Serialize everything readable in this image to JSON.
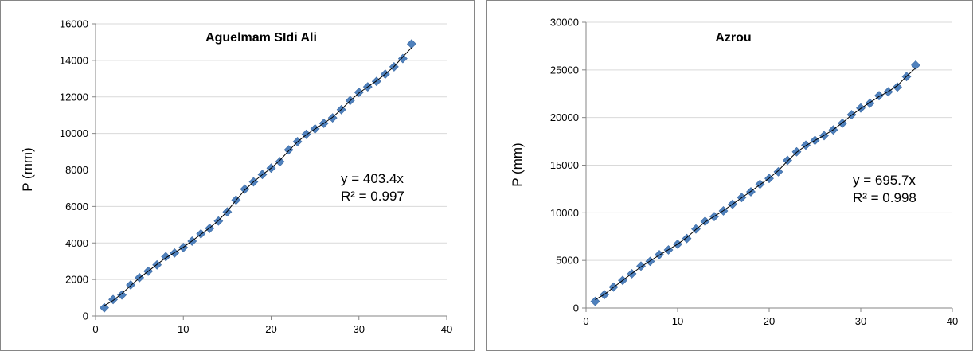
{
  "chart_data": [
    {
      "type": "scatter",
      "title": "Aguelmam SIdi Ali",
      "xlabel": "",
      "ylabel": "P (mm)",
      "xlim": [
        0,
        40
      ],
      "ylim": [
        0,
        16000
      ],
      "xticks": [
        "0",
        "10",
        "20",
        "30",
        "40"
      ],
      "yticks": [
        "0",
        "2000",
        "4000",
        "6000",
        "8000",
        "10000",
        "12000",
        "14000",
        "16000"
      ],
      "grid": "horizontal",
      "marker_color": "#4F81BD",
      "trendline_color": "#000000",
      "trendline": {
        "equation": "y = 403.4x",
        "r2": "R² = 0.997"
      },
      "series": [
        {
          "x": [
            1,
            2,
            3,
            4,
            5,
            6,
            7,
            8,
            9,
            10,
            11,
            12,
            13,
            14,
            15,
            16,
            17,
            18,
            19,
            20,
            21,
            22,
            23,
            24,
            25,
            26,
            27,
            28,
            29,
            30,
            31,
            32,
            33,
            34,
            35,
            36
          ],
          "y": [
            450,
            900,
            1150,
            1700,
            2100,
            2450,
            2800,
            3250,
            3450,
            3750,
            4100,
            4500,
            4800,
            5200,
            5700,
            6350,
            6950,
            7350,
            7750,
            8100,
            8450,
            9100,
            9550,
            9950,
            10250,
            10550,
            10850,
            11300,
            11800,
            12250,
            12550,
            12850,
            13250,
            13650,
            14100,
            14900
          ]
        }
      ]
    },
    {
      "type": "scatter",
      "title": "Azrou",
      "xlabel": "",
      "ylabel": "P (mm)",
      "xlim": [
        0,
        40
      ],
      "ylim": [
        0,
        30000
      ],
      "xticks": [
        "0",
        "10",
        "20",
        "30",
        "40"
      ],
      "yticks": [
        "0",
        "5000",
        "10000",
        "15000",
        "20000",
        "25000",
        "30000"
      ],
      "grid": "horizontal",
      "marker_color": "#4F81BD",
      "trendline_color": "#000000",
      "trendline": {
        "equation": "y = 695.7x",
        "r2": "R² = 0.998"
      },
      "series": [
        {
          "x": [
            1,
            2,
            3,
            4,
            5,
            6,
            7,
            8,
            9,
            10,
            11,
            12,
            13,
            14,
            15,
            16,
            17,
            18,
            19,
            20,
            21,
            22,
            23,
            24,
            25,
            26,
            27,
            28,
            29,
            30,
            31,
            32,
            33,
            34,
            35,
            36
          ],
          "y": [
            700,
            1400,
            2200,
            2900,
            3600,
            4400,
            4900,
            5600,
            6100,
            6700,
            7300,
            8300,
            9100,
            9600,
            10200,
            10900,
            11600,
            12200,
            13000,
            13600,
            14300,
            15500,
            16400,
            17100,
            17600,
            18100,
            18700,
            19400,
            20300,
            21000,
            21500,
            22300,
            22700,
            23200,
            24300,
            25500
          ]
        }
      ]
    }
  ]
}
